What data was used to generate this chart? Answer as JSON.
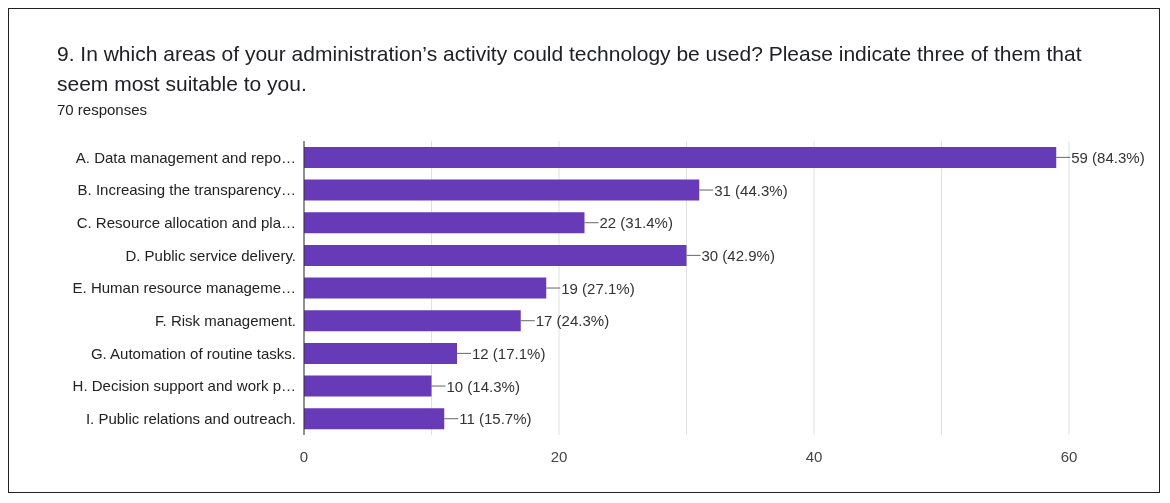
{
  "chart_data": {
    "type": "bar",
    "orientation": "horizontal",
    "title": "9. In which areas of your administration’s activity could technology be used? Please indicate three of them that seem most suitable to you.",
    "subtitle": "70 responses",
    "categories": [
      "A. Data management and repo…",
      "B. Increasing the transparency…",
      "C. Resource allocation and pla…",
      "D. Public service delivery.",
      "E. Human resource manageme…",
      "F. Risk management.",
      "G. Automation of routine tasks.",
      "H. Decision support and work p…",
      "I. Public relations and outreach."
    ],
    "values": [
      59,
      31,
      22,
      30,
      19,
      17,
      12,
      10,
      11
    ],
    "value_labels": [
      "59 (84.3%)",
      "31 (44.3%)",
      "22 (31.4%)",
      "30 (42.9%)",
      "19 (27.1%)",
      "17 (24.3%)",
      "12 (17.1%)",
      "10 (14.3%)",
      "11 (15.7%)"
    ],
    "color": "#673ab7",
    "xlim": [
      0,
      60
    ],
    "xticks": [
      0,
      {
        "value": 10,
        "label": null
      },
      20,
      {
        "value": 30,
        "label": null
      },
      40,
      {
        "value": 50,
        "label": null
      },
      60
    ],
    "grid": "x"
  }
}
